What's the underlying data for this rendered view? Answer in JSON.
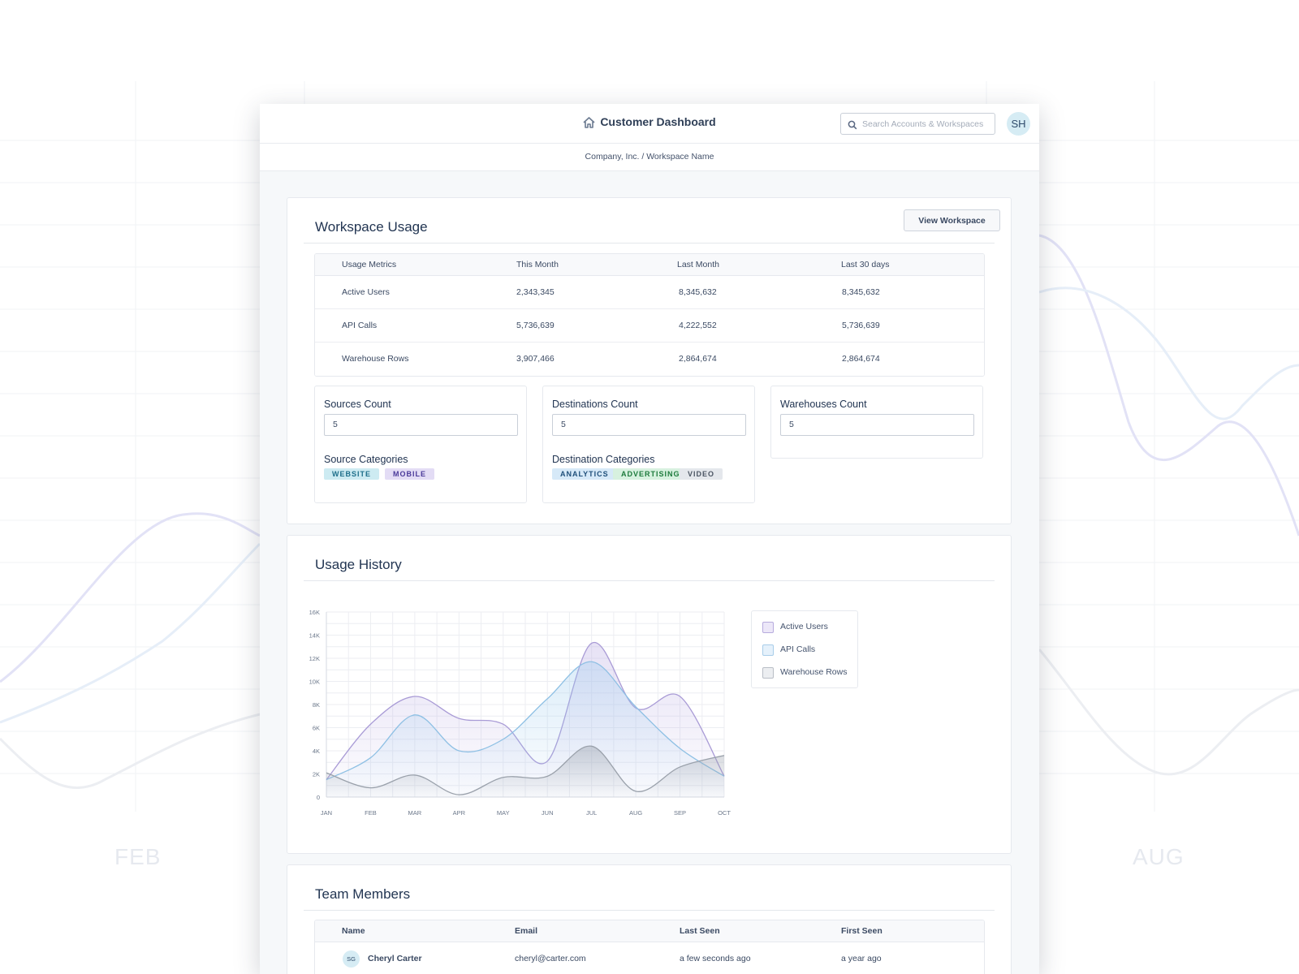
{
  "background": {
    "months": [
      "FEB",
      "AUG"
    ]
  },
  "header": {
    "title": "Customer Dashboard",
    "search_placeholder": "Search Accounts & Workspaces",
    "avatar_initials": "SH",
    "breadcrumb": "Company, Inc. / Workspace Name"
  },
  "workspace_usage": {
    "title": "Workspace Usage",
    "view_button": "View Workspace",
    "columns": [
      "Usage Metrics",
      "This Month",
      "Last Month",
      "Last 30 days"
    ],
    "rows": [
      [
        "Active Users",
        "2,343,345",
        "8,345,632",
        "8,345,632"
      ],
      [
        "API Calls",
        "5,736,639",
        "4,222,552",
        "5,736,639"
      ],
      [
        "Warehouse Rows",
        "3,907,466",
        "2,864,674",
        "2,864,674"
      ]
    ],
    "sources": {
      "label": "Sources Count",
      "value": "5",
      "categories_label": "Source Categories",
      "tags": [
        "WEBSITE",
        "MOBILE"
      ]
    },
    "destinations": {
      "label": "Destinations Count",
      "value": "5",
      "categories_label": "Destination Categories",
      "tags": [
        "ANALYTICS",
        "ADVERTISING",
        "VIDEO"
      ]
    },
    "warehouses": {
      "label": "Warehouses Count",
      "value": "5"
    }
  },
  "usage_history": {
    "title": "Usage History",
    "legend": [
      "Active Users",
      "API Calls",
      "Warehouse Rows"
    ]
  },
  "team_members": {
    "title": "Team Members",
    "columns": [
      "Name",
      "Email",
      "Last Seen",
      "First Seen"
    ],
    "rows": [
      {
        "initials": "SG",
        "name": "Cheryl Carter",
        "email": "cheryl@carter.com",
        "last_seen": "a few seconds ago",
        "first_seen": "a year ago"
      }
    ]
  },
  "colors": {
    "active_users": "#a99bd6",
    "api_calls": "#8ec0e4",
    "warehouse_rows": "#9aa1ab",
    "tag_website_bg": "#cdebf2",
    "tag_website_fg": "#1e6f8a",
    "tag_mobile_bg": "#e3dcf5",
    "tag_mobile_fg": "#4b3a9a",
    "tag_analytics_bg": "#d6e9f8",
    "tag_analytics_fg": "#1f4f7a",
    "tag_advertising_bg": "#d7f1df",
    "tag_advertising_fg": "#1d7a3c",
    "tag_video_bg": "#e4e7ec",
    "tag_video_fg": "#4b5563"
  },
  "chart_data": {
    "type": "area",
    "categories": [
      "JAN",
      "FEB",
      "MAR",
      "APR",
      "MAY",
      "JUN",
      "JUL",
      "AUG",
      "SEP",
      "OCT"
    ],
    "y_ticks": [
      "0",
      "2K",
      "4K",
      "6K",
      "8K",
      "10K",
      "12K",
      "14K",
      "16K"
    ],
    "ylim": [
      0,
      16000
    ],
    "grid": true,
    "legend_position": "right",
    "series": [
      {
        "name": "Active Users",
        "values": [
          1500,
          6300,
          8700,
          6800,
          6300,
          3100,
          13300,
          7700,
          8700,
          1800
        ]
      },
      {
        "name": "API Calls",
        "values": [
          1500,
          3400,
          7100,
          4000,
          5000,
          8500,
          11700,
          7800,
          4200,
          1800
        ]
      },
      {
        "name": "Warehouse Rows",
        "values": [
          2100,
          800,
          1900,
          200,
          1700,
          1800,
          4400,
          500,
          2600,
          3600
        ]
      }
    ]
  }
}
